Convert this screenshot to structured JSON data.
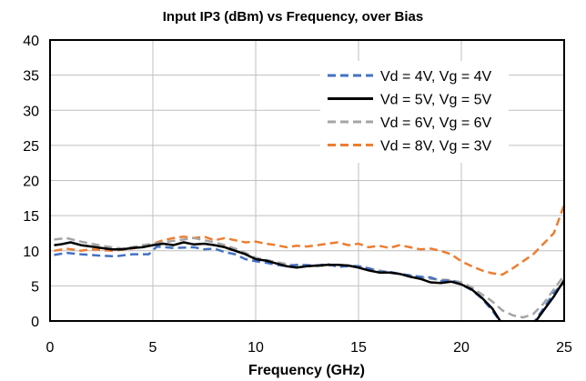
{
  "chart_data": {
    "type": "line",
    "title": "Input IP3 (dBm) vs Frequency, over Bias",
    "xlabel": "Frequency (GHz)",
    "ylabel": "",
    "xlim": [
      0,
      25
    ],
    "ylim": [
      0,
      40
    ],
    "xticks": [
      0,
      5,
      10,
      15,
      20,
      25
    ],
    "yticks": [
      0,
      5,
      10,
      15,
      20,
      25,
      30,
      35,
      40
    ],
    "grid": true,
    "legend_position": "top-right",
    "series": [
      {
        "name": "Vd = 4V, Vg = 4V",
        "color": "#4472C4",
        "dash": "dashed",
        "x": [
          0.2,
          0.8,
          1.5,
          2.5,
          3.2,
          4.0,
          4.8,
          5.2,
          6.0,
          7.0,
          7.5,
          8.0,
          8.5,
          9.0,
          9.5,
          10.0,
          10.5,
          11.0,
          11.5,
          12.0,
          13.0,
          13.5,
          14.0,
          14.5,
          15.0,
          15.5,
          16.0,
          16.5,
          17.0,
          17.5,
          18.0,
          18.5,
          19.0,
          19.5,
          20.0,
          20.5,
          21.0,
          21.5,
          22.0,
          22.5,
          23.0,
          23.5,
          24.0,
          24.5,
          25.0
        ],
        "y": [
          9.4,
          9.7,
          9.5,
          9.3,
          9.2,
          9.5,
          9.5,
          10.6,
          10.4,
          10.5,
          10.2,
          10.3,
          9.8,
          9.5,
          8.8,
          8.5,
          8.3,
          8.0,
          7.8,
          8.0,
          7.9,
          8.1,
          7.7,
          7.8,
          7.8,
          7.5,
          7.0,
          7.0,
          6.7,
          6.5,
          6.3,
          6.2,
          5.7,
          5.8,
          5.2,
          4.4,
          3.2,
          1.5,
          -0.5,
          -1.5,
          -1.8,
          -0.3,
          1.8,
          4.0,
          5.5
        ]
      },
      {
        "name": "Vd = 5V, Vg = 5V",
        "color": "#000000",
        "dash": "solid",
        "x": [
          0.2,
          0.5,
          1.0,
          1.5,
          2.0,
          2.5,
          3.0,
          3.5,
          4.0,
          4.5,
          5.0,
          5.5,
          6.0,
          6.5,
          7.0,
          7.5,
          8.0,
          8.5,
          9.0,
          9.5,
          10.0,
          10.5,
          11.0,
          11.5,
          12.0,
          12.5,
          13.0,
          13.5,
          14.0,
          14.5,
          15.0,
          15.5,
          16.0,
          16.5,
          17.0,
          17.5,
          18.0,
          18.5,
          19.0,
          19.5,
          20.0,
          20.5,
          21.0,
          21.5,
          22.0,
          22.5,
          23.0,
          23.5,
          24.0,
          24.5,
          25.0
        ],
        "y": [
          10.8,
          10.9,
          11.2,
          10.8,
          10.6,
          10.4,
          10.2,
          10.2,
          10.4,
          10.5,
          10.8,
          11.0,
          10.8,
          11.2,
          10.9,
          11.0,
          10.8,
          10.5,
          10.0,
          9.5,
          8.8,
          8.6,
          8.2,
          7.8,
          7.6,
          7.8,
          7.9,
          8.0,
          8.0,
          7.9,
          7.6,
          7.2,
          6.9,
          6.9,
          6.7,
          6.3,
          6.0,
          5.5,
          5.4,
          5.6,
          5.2,
          4.5,
          3.3,
          1.8,
          -0.5,
          -2.0,
          -2.5,
          -0.5,
          1.5,
          3.5,
          5.8
        ]
      },
      {
        "name": "Vd = 6V, Vg = 6V",
        "color": "#A5A5A5",
        "dash": "dashed",
        "x": [
          0.2,
          0.8,
          1.5,
          2.0,
          2.5,
          3.0,
          3.5,
          4.0,
          4.5,
          5.0,
          5.5,
          6.0,
          6.5,
          7.0,
          7.5,
          8.0,
          8.5,
          9.0,
          9.5,
          10.0,
          10.5,
          11.0,
          11.5,
          12.0,
          12.5,
          13.0,
          13.5,
          14.0,
          14.5,
          15.0,
          15.5,
          16.0,
          16.5,
          17.0,
          17.5,
          18.0,
          18.5,
          19.0,
          19.5,
          20.0,
          20.5,
          21.0,
          21.5,
          22.0,
          22.5,
          23.0,
          23.5,
          24.0,
          24.5,
          25.0
        ],
        "y": [
          11.6,
          11.8,
          11.3,
          11.0,
          10.7,
          10.5,
          10.3,
          10.5,
          10.8,
          11.0,
          11.2,
          11.4,
          11.6,
          11.8,
          11.5,
          11.2,
          10.8,
          10.3,
          9.7,
          9.0,
          8.7,
          8.4,
          8.1,
          7.9,
          7.8,
          7.8,
          7.9,
          8.0,
          7.9,
          7.8,
          7.5,
          7.2,
          6.9,
          6.7,
          6.5,
          6.2,
          6.0,
          5.9,
          5.8,
          5.5,
          4.8,
          3.8,
          2.8,
          1.5,
          0.8,
          0.5,
          1.0,
          2.5,
          4.5,
          6.5
        ]
      },
      {
        "name": "Vd = 8V, Vg = 3V",
        "color": "#ED7D31",
        "dash": "dashed",
        "x": [
          0.2,
          0.8,
          1.5,
          2.0,
          3.0,
          4.0,
          5.0,
          5.5,
          6.0,
          6.5,
          7.0,
          7.5,
          8.0,
          8.5,
          9.0,
          9.5,
          10.0,
          10.5,
          11.0,
          11.5,
          12.0,
          12.5,
          13.0,
          13.5,
          14.0,
          14.5,
          15.0,
          15.5,
          16.0,
          16.5,
          17.0,
          17.5,
          18.0,
          18.5,
          19.0,
          19.5,
          20.0,
          20.5,
          21.0,
          21.5,
          22.0,
          22.5,
          23.0,
          23.5,
          24.0,
          24.5,
          25.0
        ],
        "y": [
          10.0,
          10.3,
          10.0,
          10.2,
          10.0,
          10.3,
          11.0,
          11.5,
          11.8,
          12.0,
          11.8,
          12.0,
          11.5,
          11.8,
          11.5,
          11.2,
          11.3,
          11.0,
          10.8,
          10.5,
          10.7,
          10.6,
          10.8,
          11.0,
          11.2,
          10.8,
          11.0,
          10.5,
          10.7,
          10.4,
          10.8,
          10.5,
          10.2,
          10.3,
          10.0,
          9.5,
          8.5,
          7.8,
          7.2,
          6.8,
          6.6,
          7.5,
          8.5,
          9.5,
          11.0,
          12.5,
          16.5
        ]
      }
    ]
  }
}
